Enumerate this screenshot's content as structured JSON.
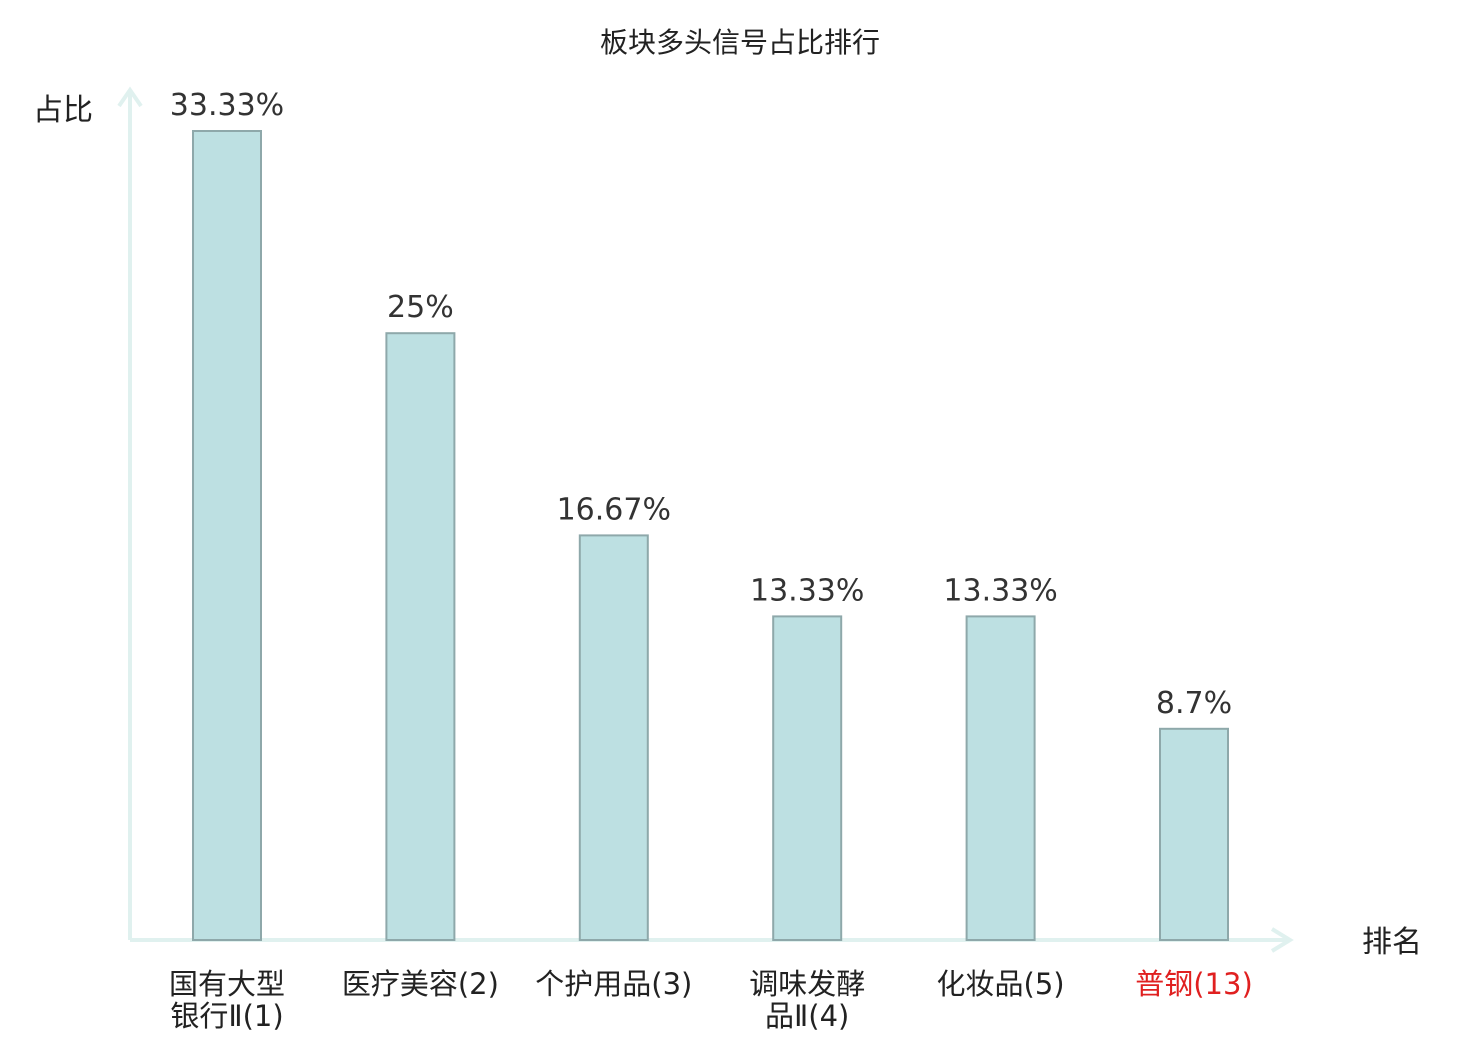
{
  "chart_data": {
    "type": "bar",
    "title": "板块多头信号占比排行",
    "ylabel": "占比",
    "xlabel": "排名",
    "categories": [
      {
        "lines": [
          "国有大型",
          "银行Ⅱ(1)"
        ],
        "highlight": false
      },
      {
        "lines": [
          "医疗美容(2)"
        ],
        "highlight": false
      },
      {
        "lines": [
          "个护用品(3)"
        ],
        "highlight": false
      },
      {
        "lines": [
          "调味发酵",
          "品Ⅱ(4)"
        ],
        "highlight": false
      },
      {
        "lines": [
          "化妆品(5)"
        ],
        "highlight": false
      },
      {
        "lines": [
          "普钢(13)"
        ],
        "highlight": true
      }
    ],
    "values": [
      33.33,
      25,
      16.67,
      13.33,
      13.33,
      8.7
    ],
    "value_labels": [
      "33.33%",
      "25%",
      "16.67%",
      "13.33%",
      "13.33%",
      "8.7%"
    ],
    "ylim": [
      0,
      33.33
    ],
    "grid": false,
    "colors": {
      "bar_fill": "#bde0e2",
      "bar_stroke": "#8ea8aa",
      "axis": "#e0f1ef",
      "text": "#222222",
      "highlight": "#e02020"
    }
  }
}
